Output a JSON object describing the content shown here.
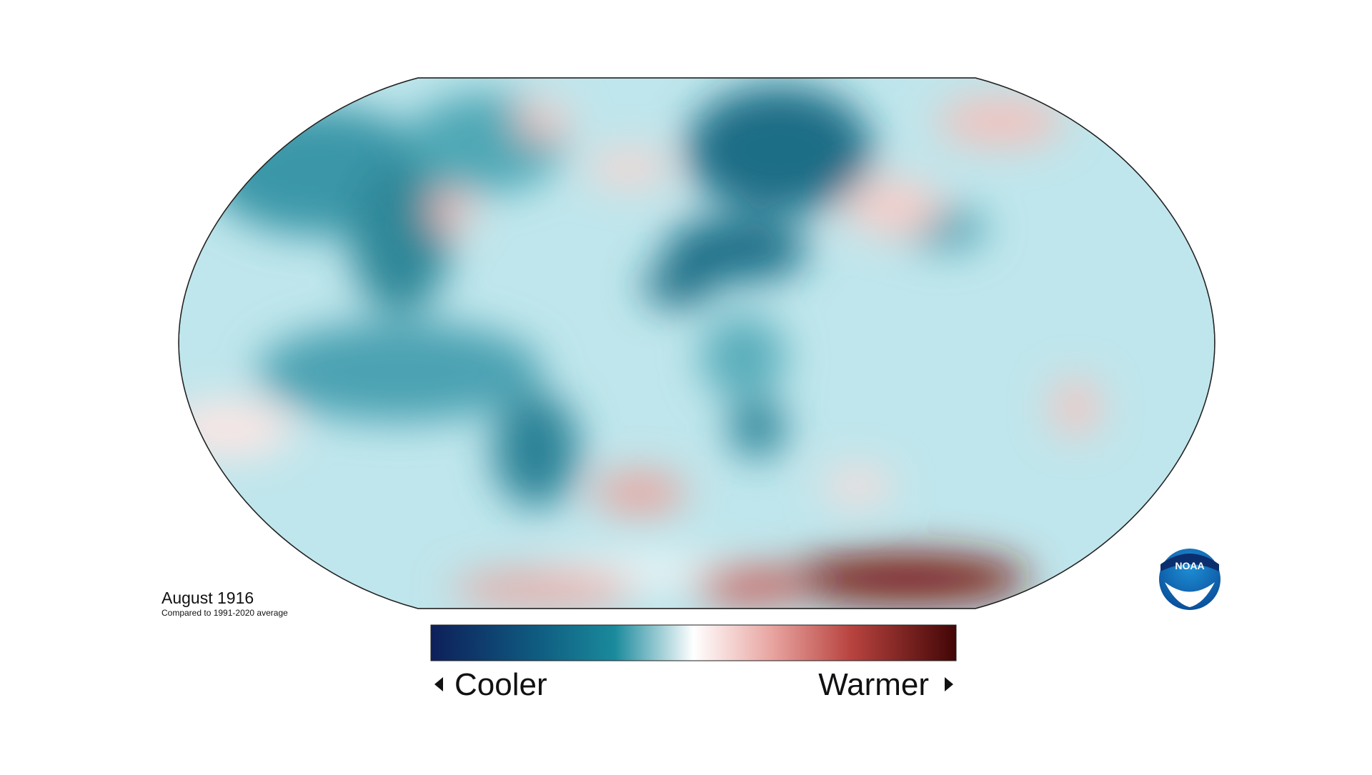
{
  "map": {
    "title": "August 1916",
    "subtitle": "Compared to 1991-2020 average"
  },
  "legend": {
    "low_label": "Cooler",
    "high_label": "Warmer"
  },
  "logo": {
    "text": "NOAA"
  }
}
